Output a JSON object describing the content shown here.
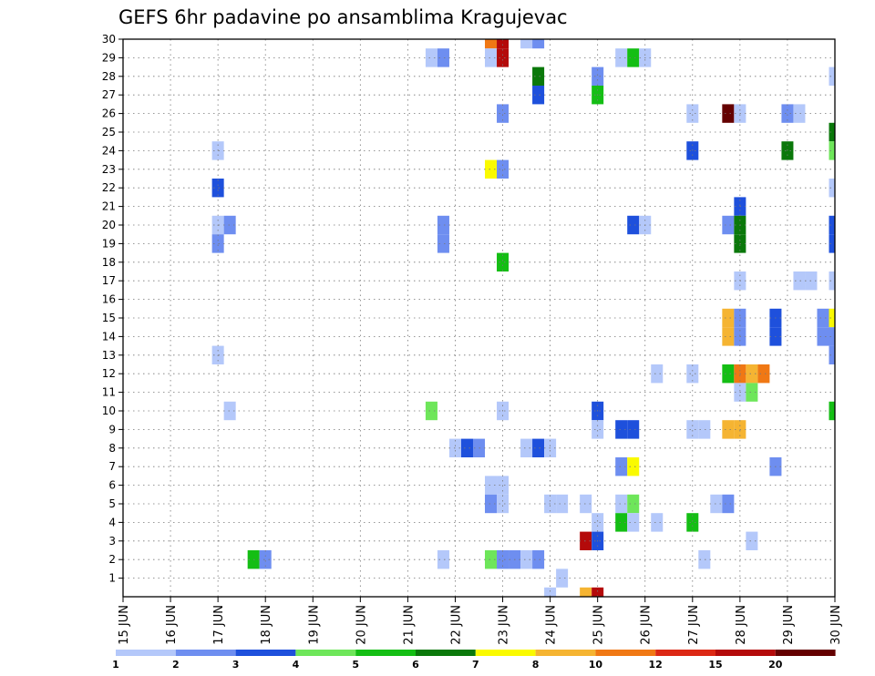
{
  "chart_data": {
    "type": "heatmap",
    "title": "GEFS 6hr padavine po ansamblima Kragujevac",
    "x_tick_labels": [
      "15 JUN",
      "16 JUN",
      "17 JUN",
      "18 JUN",
      "19 JUN",
      "20 JUN",
      "21 JUN",
      "22 JUN",
      "23 JUN",
      "24 JUN",
      "25 JUN",
      "26 JUN",
      "27 JUN",
      "28 JUN",
      "29 JUN",
      "30 JUN"
    ],
    "y_tick_labels": [
      "1",
      "2",
      "3",
      "4",
      "5",
      "6",
      "7",
      "8",
      "9",
      "10",
      "11",
      "12",
      "13",
      "14",
      "15",
      "16",
      "17",
      "18",
      "19",
      "20",
      "21",
      "22",
      "23",
      "24",
      "25",
      "26",
      "27",
      "28",
      "29",
      "30"
    ],
    "y_range": [
      0,
      30
    ],
    "x_range_days": [
      15,
      30
    ],
    "grid": true,
    "legend": {
      "placement": "bottom",
      "labels": [
        "1",
        "2",
        "3",
        "4",
        "5",
        "6",
        "7",
        "8",
        "10",
        "12",
        "15",
        "20"
      ],
      "colors": [
        "#b4c8fa",
        "#6e8ef0",
        "#1e50dc",
        "#6ee65a",
        "#14be14",
        "#0a780a",
        "#fafa00",
        "#f5b432",
        "#f07814",
        "#dc2814",
        "#b40a0a",
        "#640000"
      ]
    },
    "cells": [
      {
        "member": 30,
        "x": 22.75,
        "level": 9
      },
      {
        "member": 30,
        "x": 23.0,
        "level": 11
      },
      {
        "member": 30,
        "x": 23.5,
        "level": 1
      },
      {
        "member": 30,
        "x": 23.75,
        "level": 2
      },
      {
        "member": 29,
        "x": 21.5,
        "level": 1
      },
      {
        "member": 29,
        "x": 21.75,
        "level": 2
      },
      {
        "member": 29,
        "x": 22.75,
        "level": 1
      },
      {
        "member": 29,
        "x": 23.0,
        "level": 11
      },
      {
        "member": 29,
        "x": 25.5,
        "level": 1
      },
      {
        "member": 29,
        "x": 25.75,
        "level": 5
      },
      {
        "member": 29,
        "x": 26.0,
        "level": 1
      },
      {
        "member": 28,
        "x": 23.75,
        "level": 6
      },
      {
        "member": 28,
        "x": 25.0,
        "level": 2
      },
      {
        "member": 28,
        "x": 30.0,
        "level": 1
      },
      {
        "member": 27,
        "x": 23.75,
        "level": 3
      },
      {
        "member": 27,
        "x": 25.0,
        "level": 5
      },
      {
        "member": 26,
        "x": 23.0,
        "level": 2
      },
      {
        "member": 26,
        "x": 27.0,
        "level": 1
      },
      {
        "member": 26,
        "x": 27.75,
        "level": 12
      },
      {
        "member": 26,
        "x": 28.0,
        "level": 1
      },
      {
        "member": 26,
        "x": 29.0,
        "level": 2
      },
      {
        "member": 26,
        "x": 29.25,
        "level": 1
      },
      {
        "member": 25,
        "x": 30.0,
        "level": 6
      },
      {
        "member": 24,
        "x": 17.0,
        "level": 1
      },
      {
        "member": 24,
        "x": 27.0,
        "level": 3
      },
      {
        "member": 24,
        "x": 29.0,
        "level": 6
      },
      {
        "member": 24,
        "x": 30.0,
        "level": 4
      },
      {
        "member": 23,
        "x": 22.75,
        "level": 7
      },
      {
        "member": 23,
        "x": 23.0,
        "level": 2
      },
      {
        "member": 22,
        "x": 17.0,
        "level": 3
      },
      {
        "member": 22,
        "x": 30.0,
        "level": 1
      },
      {
        "member": 21,
        "x": 28.0,
        "level": 3
      },
      {
        "member": 20,
        "x": 17.0,
        "level": 1
      },
      {
        "member": 20,
        "x": 17.25,
        "level": 2
      },
      {
        "member": 20,
        "x": 21.75,
        "level": 2
      },
      {
        "member": 20,
        "x": 25.75,
        "level": 3
      },
      {
        "member": 20,
        "x": 26.0,
        "level": 1
      },
      {
        "member": 20,
        "x": 27.75,
        "level": 2
      },
      {
        "member": 20,
        "x": 28.0,
        "level": 6
      },
      {
        "member": 20,
        "x": 30.0,
        "level": 3
      },
      {
        "member": 19,
        "x": 17.0,
        "level": 2
      },
      {
        "member": 19,
        "x": 21.75,
        "level": 2
      },
      {
        "member": 19,
        "x": 28.0,
        "level": 6
      },
      {
        "member": 19,
        "x": 30.0,
        "level": 3
      },
      {
        "member": 18,
        "x": 23.0,
        "level": 5
      },
      {
        "member": 17,
        "x": 28.0,
        "level": 1
      },
      {
        "member": 17,
        "x": 29.25,
        "level": 1
      },
      {
        "member": 17,
        "x": 29.5,
        "level": 1
      },
      {
        "member": 17,
        "x": 30.0,
        "level": 1
      },
      {
        "member": 15,
        "x": 27.75,
        "level": 8
      },
      {
        "member": 15,
        "x": 28.0,
        "level": 2
      },
      {
        "member": 15,
        "x": 28.75,
        "level": 3
      },
      {
        "member": 15,
        "x": 29.75,
        "level": 2
      },
      {
        "member": 15,
        "x": 30.0,
        "level": 7
      },
      {
        "member": 14,
        "x": 27.75,
        "level": 8
      },
      {
        "member": 14,
        "x": 28.0,
        "level": 2
      },
      {
        "member": 14,
        "x": 28.75,
        "level": 3
      },
      {
        "member": 14,
        "x": 29.75,
        "level": 2
      },
      {
        "member": 14,
        "x": 30.0,
        "level": 2
      },
      {
        "member": 13,
        "x": 17.0,
        "level": 1
      },
      {
        "member": 13,
        "x": 30.0,
        "level": 2
      },
      {
        "member": 12,
        "x": 26.25,
        "level": 1
      },
      {
        "member": 12,
        "x": 27.0,
        "level": 1
      },
      {
        "member": 12,
        "x": 27.75,
        "level": 5
      },
      {
        "member": 12,
        "x": 28.0,
        "level": 9
      },
      {
        "member": 12,
        "x": 28.25,
        "level": 8
      },
      {
        "member": 12,
        "x": 28.5,
        "level": 9
      },
      {
        "member": 11,
        "x": 28.0,
        "level": 1
      },
      {
        "member": 11,
        "x": 28.25,
        "level": 4
      },
      {
        "member": 10,
        "x": 17.25,
        "level": 1
      },
      {
        "member": 10,
        "x": 21.5,
        "level": 4
      },
      {
        "member": 10,
        "x": 23.0,
        "level": 1
      },
      {
        "member": 10,
        "x": 25.0,
        "level": 3
      },
      {
        "member": 10,
        "x": 30.0,
        "level": 5
      },
      {
        "member": 9,
        "x": 25.0,
        "level": 1
      },
      {
        "member": 9,
        "x": 25.5,
        "level": 3
      },
      {
        "member": 9,
        "x": 25.75,
        "level": 3
      },
      {
        "member": 9,
        "x": 27.0,
        "level": 1
      },
      {
        "member": 9,
        "x": 27.25,
        "level": 1
      },
      {
        "member": 9,
        "x": 27.75,
        "level": 8
      },
      {
        "member": 9,
        "x": 28.0,
        "level": 8
      },
      {
        "member": 8,
        "x": 22.0,
        "level": 1
      },
      {
        "member": 8,
        "x": 22.25,
        "level": 3
      },
      {
        "member": 8,
        "x": 22.5,
        "level": 2
      },
      {
        "member": 8,
        "x": 23.5,
        "level": 1
      },
      {
        "member": 8,
        "x": 23.75,
        "level": 3
      },
      {
        "member": 8,
        "x": 24.0,
        "level": 1
      },
      {
        "member": 7,
        "x": 25.5,
        "level": 2
      },
      {
        "member": 7,
        "x": 25.75,
        "level": 7
      },
      {
        "member": 7,
        "x": 28.75,
        "level": 2
      },
      {
        "member": 6,
        "x": 22.75,
        "level": 1
      },
      {
        "member": 6,
        "x": 23.0,
        "level": 1
      },
      {
        "member": 5,
        "x": 22.75,
        "level": 2
      },
      {
        "member": 5,
        "x": 23.0,
        "level": 1
      },
      {
        "member": 5,
        "x": 24.0,
        "level": 1
      },
      {
        "member": 5,
        "x": 24.25,
        "level": 1
      },
      {
        "member": 5,
        "x": 24.75,
        "level": 1
      },
      {
        "member": 5,
        "x": 25.5,
        "level": 1
      },
      {
        "member": 5,
        "x": 25.75,
        "level": 4
      },
      {
        "member": 5,
        "x": 27.5,
        "level": 1
      },
      {
        "member": 5,
        "x": 27.75,
        "level": 2
      },
      {
        "member": 4,
        "x": 25.0,
        "level": 1
      },
      {
        "member": 4,
        "x": 25.5,
        "level": 5
      },
      {
        "member": 4,
        "x": 25.75,
        "level": 1
      },
      {
        "member": 4,
        "x": 26.25,
        "level": 1
      },
      {
        "member": 4,
        "x": 27.0,
        "level": 5
      },
      {
        "member": 3,
        "x": 24.75,
        "level": 11
      },
      {
        "member": 3,
        "x": 25.0,
        "level": 3
      },
      {
        "member": 3,
        "x": 28.25,
        "level": 1
      },
      {
        "member": 2,
        "x": 17.75,
        "level": 5
      },
      {
        "member": 2,
        "x": 18.0,
        "level": 2
      },
      {
        "member": 2,
        "x": 21.75,
        "level": 1
      },
      {
        "member": 2,
        "x": 22.75,
        "level": 4
      },
      {
        "member": 2,
        "x": 23.0,
        "level": 2
      },
      {
        "member": 2,
        "x": 23.25,
        "level": 2
      },
      {
        "member": 2,
        "x": 23.5,
        "level": 1
      },
      {
        "member": 2,
        "x": 23.75,
        "level": 2
      },
      {
        "member": 2,
        "x": 27.25,
        "level": 1
      },
      {
        "member": 1,
        "x": 24.25,
        "level": 1
      },
      {
        "member": 0,
        "x": 24.0,
        "level": 1
      },
      {
        "member": 0,
        "x": 24.75,
        "level": 8
      },
      {
        "member": 0,
        "x": 25.0,
        "level": 11
      }
    ]
  }
}
